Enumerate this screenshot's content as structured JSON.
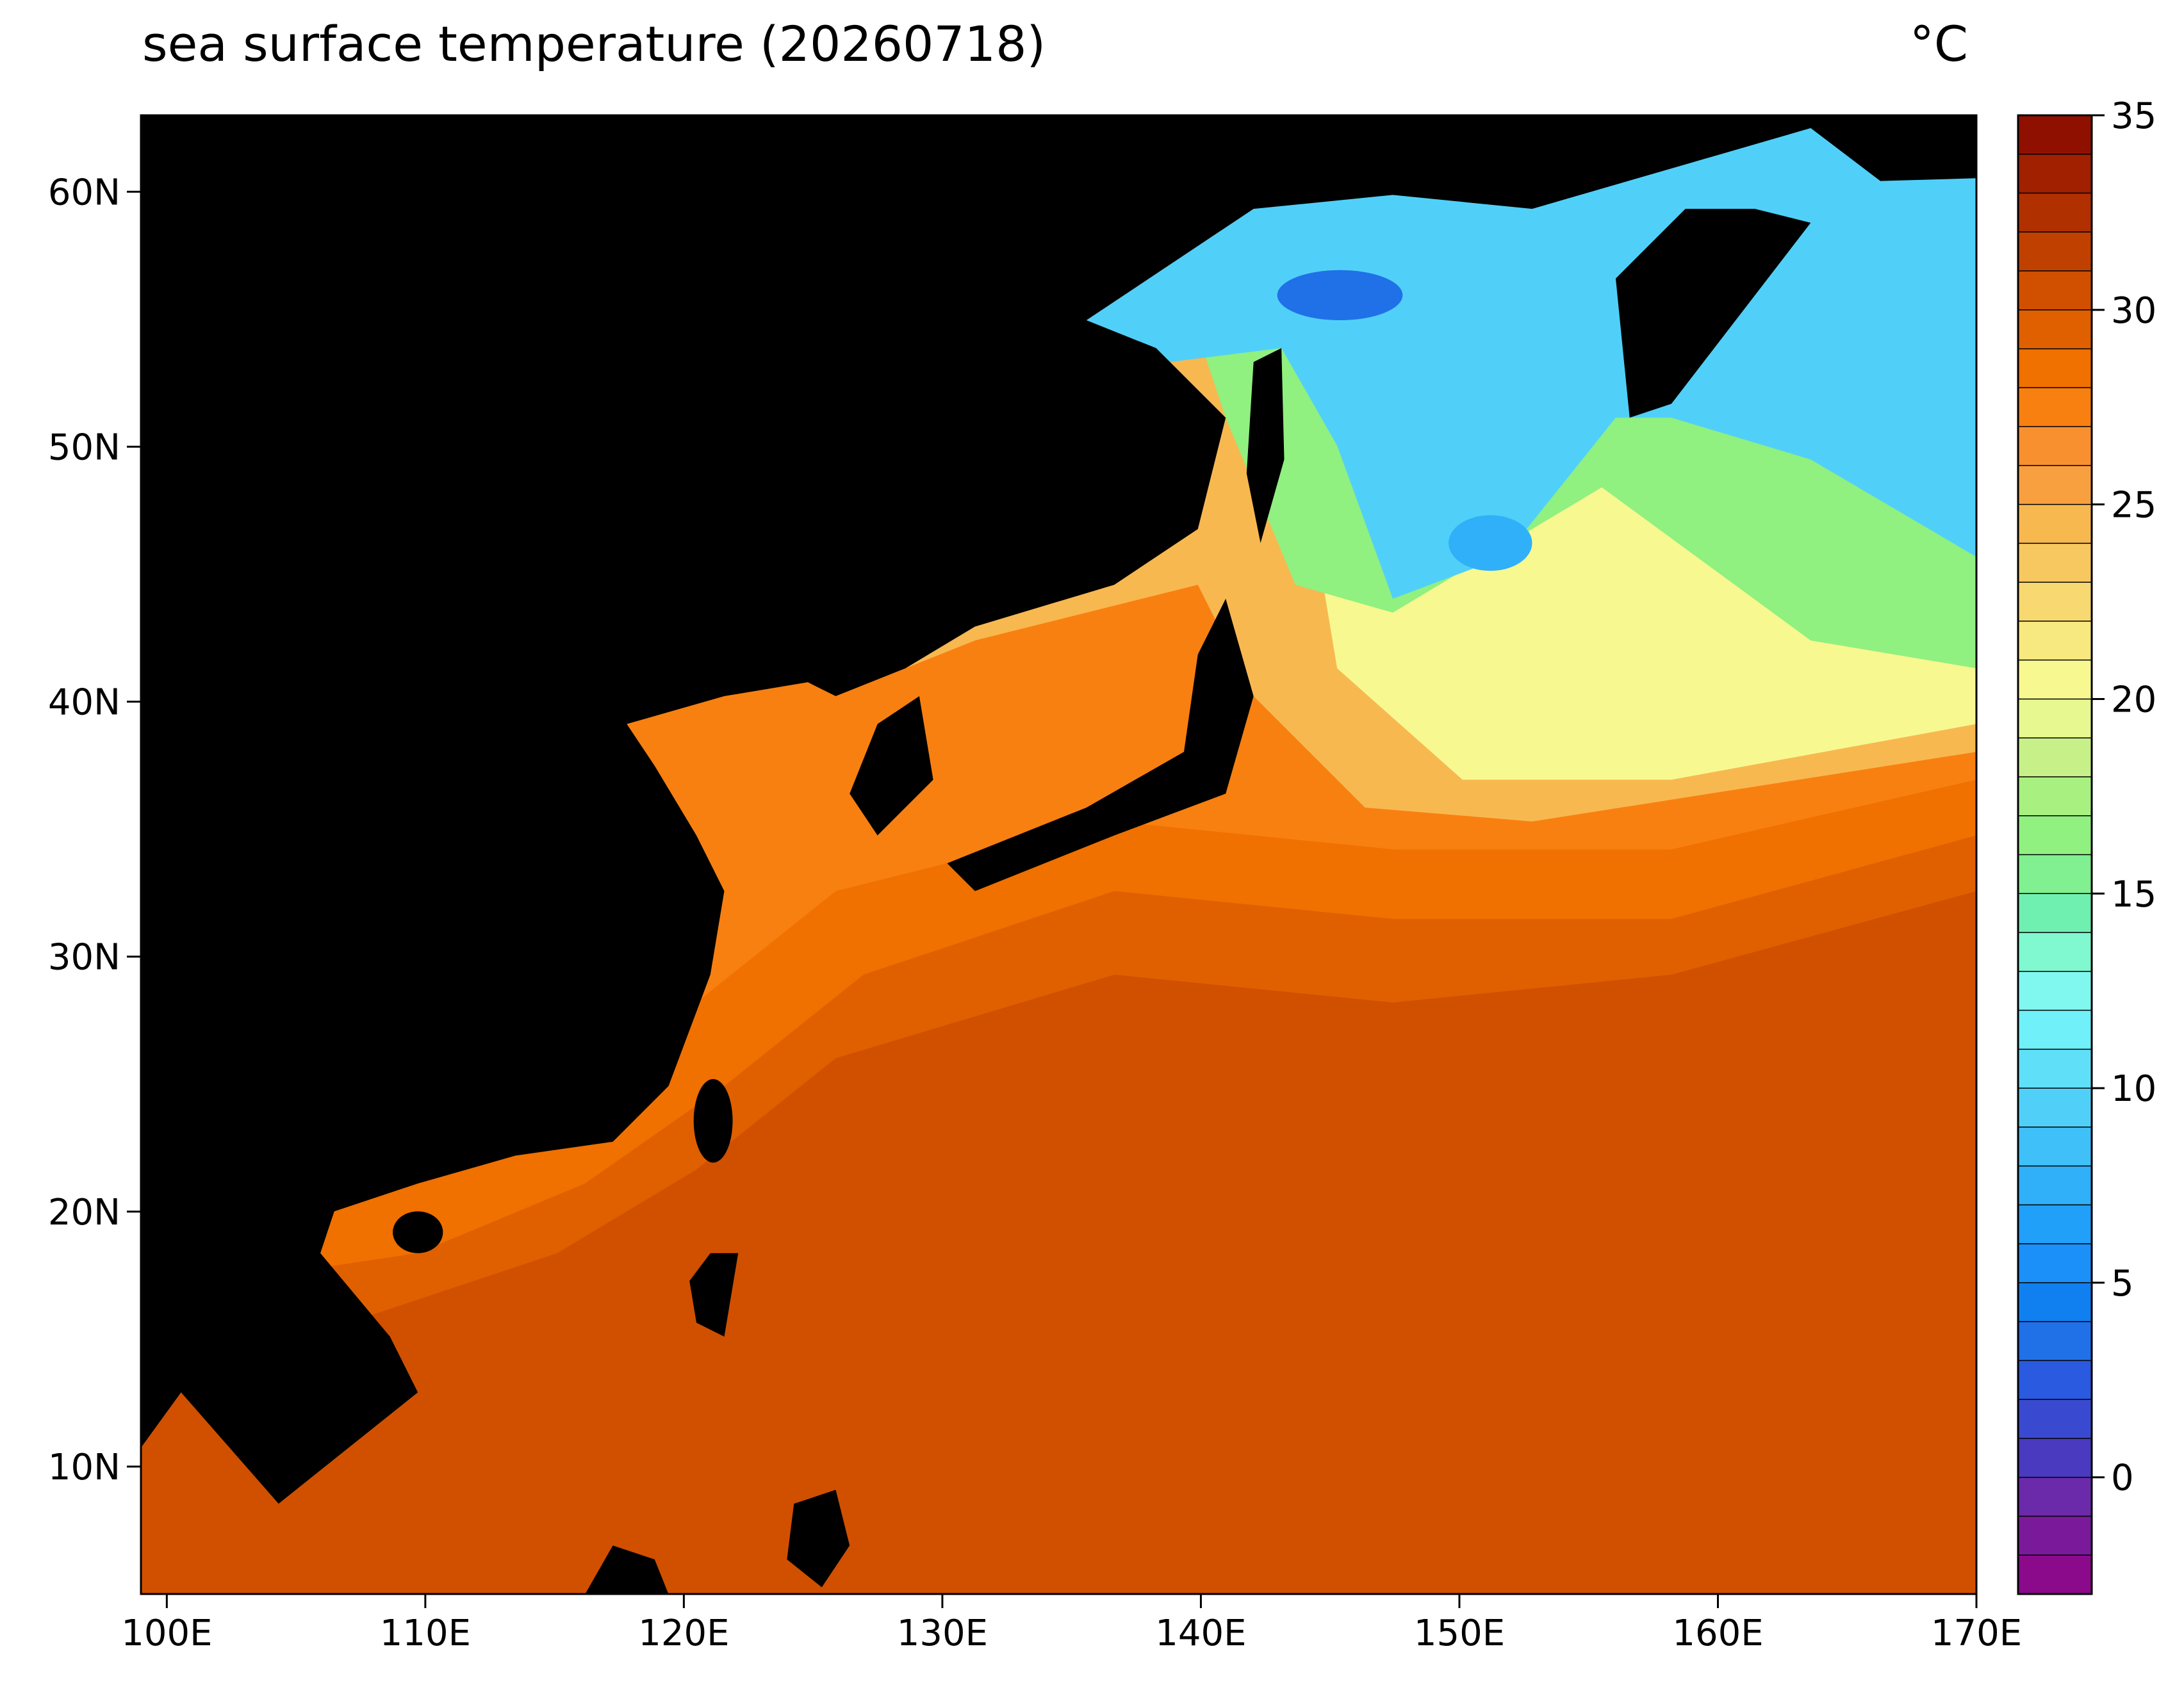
{
  "chart_data": {
    "type": "map",
    "title": "sea surface temperature (20260718)",
    "unit": "°C",
    "xlim": [
      99,
      170
    ],
    "ylim": [
      5,
      63
    ],
    "xticks": [
      {
        "value": 100,
        "label": "100E"
      },
      {
        "value": 110,
        "label": "110E"
      },
      {
        "value": 120,
        "label": "120E"
      },
      {
        "value": 130,
        "label": "130E"
      },
      {
        "value": 140,
        "label": "140E"
      },
      {
        "value": 150,
        "label": "150E"
      },
      {
        "value": 160,
        "label": "160E"
      },
      {
        "value": 170,
        "label": "170E"
      }
    ],
    "yticks": [
      {
        "value": 10,
        "label": "10N"
      },
      {
        "value": 20,
        "label": "20N"
      },
      {
        "value": 30,
        "label": "30N"
      },
      {
        "value": 40,
        "label": "40N"
      },
      {
        "value": 50,
        "label": "50N"
      },
      {
        "value": 60,
        "label": "60N"
      }
    ],
    "colorbar": {
      "levels": [
        -3,
        -2,
        -1,
        0,
        1,
        2,
        3,
        4,
        5,
        6,
        7,
        8,
        9,
        10,
        11,
        12,
        13,
        14,
        15,
        16,
        17,
        18,
        19,
        20,
        21,
        22,
        23,
        24,
        25,
        26,
        27,
        28,
        29,
        30,
        31,
        32,
        33,
        34,
        35
      ],
      "colors": [
        "#8b0a8b",
        "#7a1a9a",
        "#6a2aaa",
        "#4a3ac0",
        "#3a4ad0",
        "#2a5ae0",
        "#2070e8",
        "#1080f0",
        "#1a90f8",
        "#20a0f8",
        "#30b0f8",
        "#40c0f8",
        "#50d0f8",
        "#60e0f8",
        "#70f0f8",
        "#80f8f0",
        "#80f8d0",
        "#70f0b0",
        "#80f090",
        "#90f080",
        "#a8f080",
        "#c8f088",
        "#e8f890",
        "#f8f890",
        "#f8e880",
        "#f8d870",
        "#f8c860",
        "#f8b850",
        "#f8a040",
        "#f89030",
        "#f88010",
        "#f07000",
        "#e06000",
        "#d05000",
        "#c04000",
        "#b03000",
        "#a02000",
        "#901000"
      ],
      "ticks": [
        0,
        5,
        10,
        15,
        20,
        25,
        30,
        35
      ]
    }
  }
}
